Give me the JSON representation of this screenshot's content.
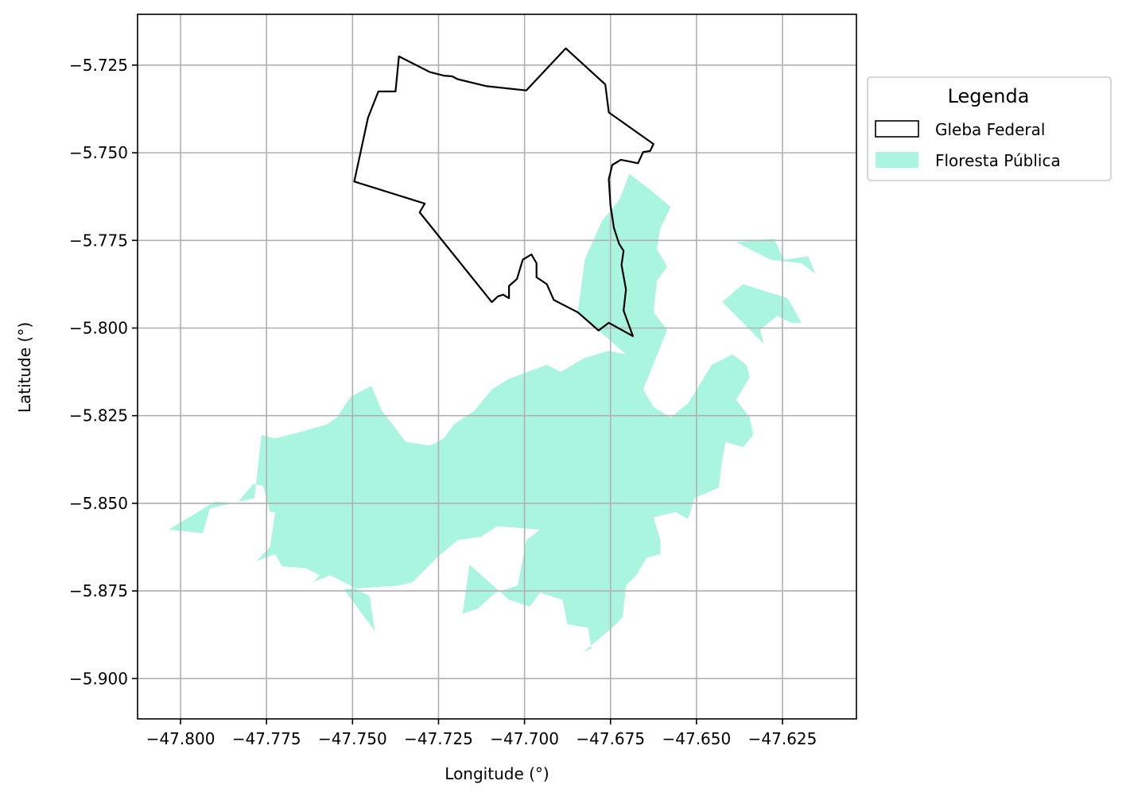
{
  "chart_data": {
    "type": "map",
    "xlabel": "Longitude (°)",
    "ylabel": "Latitude (°)",
    "xlim": [
      -47.8125,
      -47.6035
    ],
    "ylim": [
      -5.9115,
      -5.7105
    ],
    "grid": true,
    "x_ticks": [
      {
        "value": -47.8,
        "label": "−47.800"
      },
      {
        "value": -47.775,
        "label": "−47.775"
      },
      {
        "value": -47.75,
        "label": "−47.750"
      },
      {
        "value": -47.725,
        "label": "−47.725"
      },
      {
        "value": -47.7,
        "label": "−47.700"
      },
      {
        "value": -47.675,
        "label": "−47.675"
      },
      {
        "value": -47.65,
        "label": "−47.650"
      },
      {
        "value": -47.625,
        "label": "−47.625"
      }
    ],
    "y_ticks": [
      {
        "value": -5.725,
        "label": "−5.725"
      },
      {
        "value": -5.75,
        "label": "−5.750"
      },
      {
        "value": -5.775,
        "label": "−5.775"
      },
      {
        "value": -5.8,
        "label": "−5.800"
      },
      {
        "value": -5.825,
        "label": "−5.825"
      },
      {
        "value": -5.85,
        "label": "−5.850"
      },
      {
        "value": -5.875,
        "label": "−5.875"
      },
      {
        "value": -5.9,
        "label": "−5.900"
      }
    ],
    "legend": {
      "title": "Legenda",
      "placement": "outside-right-top",
      "entries": [
        {
          "label": "Gleba Federal",
          "style": "outline",
          "color": "#000000"
        },
        {
          "label": "Floresta Pública",
          "style": "fill",
          "color": "#aaf5e0"
        }
      ]
    },
    "gleba_federal": {
      "color": "#000000",
      "coords": [
        [
          -47.7365,
          -5.7225
        ],
        [
          -47.7275,
          -5.727
        ],
        [
          -47.7235,
          -5.728
        ],
        [
          -47.721,
          -5.7282
        ],
        [
          -47.7195,
          -5.729
        ],
        [
          -47.711,
          -5.731
        ],
        [
          -47.6995,
          -5.7322
        ],
        [
          -47.688,
          -5.7202
        ],
        [
          -47.6765,
          -5.7305
        ],
        [
          -47.6755,
          -5.7385
        ],
        [
          -47.6625,
          -5.7475
        ],
        [
          -47.6635,
          -5.7495
        ],
        [
          -47.6655,
          -5.7498
        ],
        [
          -47.667,
          -5.753
        ],
        [
          -47.6695,
          -5.7525
        ],
        [
          -47.672,
          -5.752
        ],
        [
          -47.6745,
          -5.7535
        ],
        [
          -47.6755,
          -5.7575
        ],
        [
          -47.675,
          -5.765
        ],
        [
          -47.674,
          -5.7715
        ],
        [
          -47.6725,
          -5.776
        ],
        [
          -47.6712,
          -5.778
        ],
        [
          -47.6718,
          -5.782
        ],
        [
          -47.6705,
          -5.789
        ],
        [
          -47.6712,
          -5.795
        ],
        [
          -47.6685,
          -5.8023
        ],
        [
          -47.6755,
          -5.7985
        ],
        [
          -47.6785,
          -5.8007
        ],
        [
          -47.681,
          -5.7985
        ],
        [
          -47.6845,
          -5.7955
        ],
        [
          -47.6865,
          -5.7945
        ],
        [
          -47.6915,
          -5.792
        ],
        [
          -47.6935,
          -5.7875
        ],
        [
          -47.6965,
          -5.7855
        ],
        [
          -47.6965,
          -5.7815
        ],
        [
          -47.698,
          -5.779
        ],
        [
          -47.7005,
          -5.7805
        ],
        [
          -47.7022,
          -5.786
        ],
        [
          -47.7045,
          -5.788
        ],
        [
          -47.7045,
          -5.7915
        ],
        [
          -47.7062,
          -5.7905
        ],
        [
          -47.7078,
          -5.791
        ],
        [
          -47.7095,
          -5.7926
        ],
        [
          -47.7305,
          -5.767
        ],
        [
          -47.729,
          -5.7645
        ],
        [
          -47.7495,
          -5.7582
        ],
        [
          -47.7455,
          -5.74
        ],
        [
          -47.7425,
          -5.7325
        ],
        [
          -47.7385,
          -5.7325
        ],
        [
          -47.7375,
          -5.7325
        ],
        [
          -47.7365,
          -5.7225
        ]
      ]
    },
    "floresta_publica": {
      "color": "#aaf5e0",
      "polygons": [
        [
          [
            -47.8035,
            -5.8575
          ],
          [
            -47.79,
            -5.8495
          ],
          [
            -47.7835,
            -5.85
          ],
          [
            -47.779,
            -5.8445
          ],
          [
            -47.776,
            -5.845
          ],
          [
            -47.774,
            -5.8525
          ],
          [
            -47.7725,
            -5.8525
          ],
          [
            -47.774,
            -5.8625
          ],
          [
            -47.778,
            -5.8665
          ],
          [
            -47.7725,
            -5.8645
          ],
          [
            -47.7705,
            -5.868
          ],
          [
            -47.7635,
            -5.8685
          ],
          [
            -47.7595,
            -5.8705
          ],
          [
            -47.7615,
            -5.8725
          ],
          [
            -47.7565,
            -5.8705
          ],
          [
            -47.7525,
            -5.8725
          ],
          [
            -47.745,
            -5.8765
          ],
          [
            -47.7435,
            -5.8865
          ],
          [
            -47.7525,
            -5.8745
          ],
          [
            -47.737,
            -5.8735
          ],
          [
            -47.7325,
            -5.8725
          ],
          [
            -47.7255,
            -5.8655
          ],
          [
            -47.7195,
            -5.8605
          ],
          [
            -47.7125,
            -5.8595
          ],
          [
            -47.708,
            -5.8565
          ],
          [
            -47.6955,
            -5.8575
          ],
          [
            -47.6995,
            -5.8605
          ],
          [
            -47.702,
            -5.8735
          ],
          [
            -47.7085,
            -5.8755
          ],
          [
            -47.7135,
            -5.88
          ],
          [
            -47.718,
            -5.8815
          ],
          [
            -47.716,
            -5.8675
          ],
          [
            -47.7045,
            -5.8775
          ],
          [
            -47.6985,
            -5.8795
          ],
          [
            -47.6955,
            -5.8755
          ],
          [
            -47.689,
            -5.8775
          ],
          [
            -47.6875,
            -5.8845
          ],
          [
            -47.6815,
            -5.8855
          ],
          [
            -47.6805,
            -5.8915
          ],
          [
            -47.683,
            -5.8925
          ],
          [
            -47.6745,
            -5.8855
          ],
          [
            -47.6715,
            -5.8825
          ],
          [
            -47.6705,
            -5.8735
          ],
          [
            -47.6675,
            -5.8705
          ],
          [
            -47.6645,
            -5.8655
          ],
          [
            -47.6605,
            -5.8645
          ],
          [
            -47.6605,
            -5.8605
          ],
          [
            -47.6625,
            -5.854
          ],
          [
            -47.656,
            -5.8525
          ],
          [
            -47.6525,
            -5.8545
          ],
          [
            -47.6505,
            -5.8485
          ],
          [
            -47.6435,
            -5.8455
          ],
          [
            -47.6425,
            -5.8375
          ],
          [
            -47.6415,
            -5.8325
          ],
          [
            -47.6365,
            -5.834
          ],
          [
            -47.6335,
            -5.8305
          ],
          [
            -47.6345,
            -5.8255
          ],
          [
            -47.6385,
            -5.8205
          ],
          [
            -47.6345,
            -5.814
          ],
          [
            -47.6355,
            -5.8105
          ],
          [
            -47.6395,
            -5.8075
          ],
          [
            -47.6455,
            -5.8105
          ],
          [
            -47.6525,
            -5.8215
          ],
          [
            -47.6575,
            -5.8255
          ],
          [
            -47.6625,
            -5.8225
          ],
          [
            -47.6655,
            -5.8175
          ],
          [
            -47.6585,
            -5.8005
          ],
          [
            -47.6625,
            -5.7955
          ],
          [
            -47.6615,
            -5.7865
          ],
          [
            -47.6585,
            -5.7825
          ],
          [
            -47.6615,
            -5.7775
          ],
          [
            -47.6605,
            -5.7715
          ],
          [
            -47.6575,
            -5.7655
          ],
          [
            -47.6635,
            -5.7605
          ],
          [
            -47.6695,
            -5.756
          ],
          [
            -47.6725,
            -5.7635
          ],
          [
            -47.6775,
            -5.7695
          ],
          [
            -47.6825,
            -5.7805
          ],
          [
            -47.6845,
            -5.7955
          ],
          [
            -47.6705,
            -5.8075
          ],
          [
            -47.6755,
            -5.8065
          ],
          [
            -47.6825,
            -5.8085
          ],
          [
            -47.6895,
            -5.8125
          ],
          [
            -47.6935,
            -5.8105
          ],
          [
            -47.7045,
            -5.8145
          ],
          [
            -47.7095,
            -5.8175
          ],
          [
            -47.7145,
            -5.8235
          ],
          [
            -47.7205,
            -5.8275
          ],
          [
            -47.7235,
            -5.8315
          ],
          [
            -47.7275,
            -5.8335
          ],
          [
            -47.7345,
            -5.8325
          ],
          [
            -47.7415,
            -5.8235
          ],
          [
            -47.7445,
            -5.8165
          ],
          [
            -47.7505,
            -5.8195
          ],
          [
            -47.7545,
            -5.8255
          ],
          [
            -47.7575,
            -5.8275
          ],
          [
            -47.7645,
            -5.8295
          ],
          [
            -47.7725,
            -5.8315
          ],
          [
            -47.7765,
            -5.8305
          ],
          [
            -47.7775,
            -5.8395
          ],
          [
            -47.7785,
            -5.8485
          ],
          [
            -47.7915,
            -5.8515
          ],
          [
            -47.7935,
            -5.8585
          ],
          [
            -47.8035,
            -5.8575
          ]
        ]
      ]
    },
    "floresta_publica_islands": [
      [
        [
          -47.6425,
          -5.7925
        ],
        [
          -47.6305,
          -5.8045
        ],
        [
          -47.6315,
          -5.8005
        ],
        [
          -47.6265,
          -5.7965
        ],
        [
          -47.6225,
          -5.7985
        ],
        [
          -47.6195,
          -5.7985
        ],
        [
          -47.6235,
          -5.7915
        ],
        [
          -47.6365,
          -5.7875
        ],
        [
          -47.6425,
          -5.7925
        ]
      ],
      [
        [
          -47.6385,
          -5.7755
        ],
        [
          -47.6275,
          -5.7745
        ],
        [
          -47.6245,
          -5.7805
        ],
        [
          -47.6175,
          -5.7795
        ],
        [
          -47.6155,
          -5.7845
        ],
        [
          -47.6195,
          -5.7815
        ],
        [
          -47.6285,
          -5.7805
        ],
        [
          -47.6385,
          -5.7755
        ]
      ]
    ]
  }
}
